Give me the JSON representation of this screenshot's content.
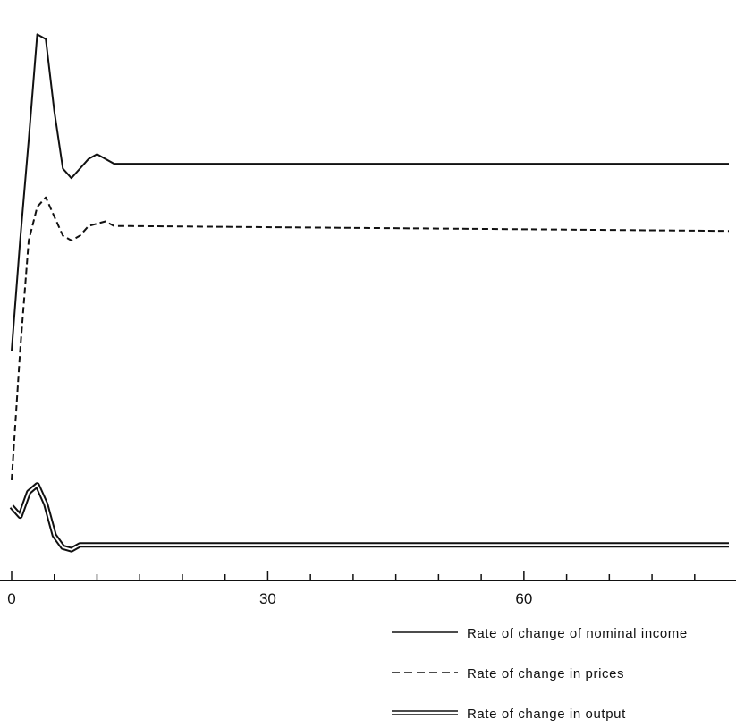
{
  "chart_data": {
    "type": "line",
    "xlabel": "",
    "ylabel": "",
    "xlim": [
      0,
      84
    ],
    "x_tick_labels": [
      "0",
      "30",
      "60"
    ],
    "x_tick_values": [
      0,
      30,
      60
    ],
    "minor_tick_step": 5,
    "y_axis_shown": false,
    "grid": false,
    "legend_position": "bottom-right",
    "series": [
      {
        "name": "Rate of change of nominal income",
        "style": "solid",
        "x": [
          0,
          1,
          2,
          3,
          4,
          5,
          6,
          7,
          8,
          9,
          10,
          11,
          12,
          84
        ],
        "y": [
          4.2,
          6.5,
          8.6,
          10.8,
          10.7,
          9.2,
          8.0,
          7.8,
          8.0,
          8.2,
          8.3,
          8.2,
          8.1,
          8.1
        ]
      },
      {
        "name": "Rate of change in prices",
        "style": "dashed",
        "x": [
          0,
          1,
          2,
          3,
          4,
          5,
          6,
          7,
          8,
          9,
          10,
          11,
          12,
          14,
          84
        ],
        "y": [
          1.5,
          4.2,
          6.5,
          7.2,
          7.4,
          7.0,
          6.6,
          6.5,
          6.6,
          6.8,
          6.85,
          6.9,
          6.8,
          6.8,
          6.7
        ]
      },
      {
        "name": "Rate of change in output",
        "style": "double",
        "x": [
          0,
          1,
          2,
          3,
          4,
          5,
          6,
          7,
          8,
          84
        ],
        "y": [
          0.95,
          0.75,
          1.25,
          1.4,
          1.0,
          0.35,
          0.1,
          0.05,
          0.15,
          0.15
        ]
      }
    ],
    "ylim": [
      -0.2,
      11.2
    ]
  }
}
